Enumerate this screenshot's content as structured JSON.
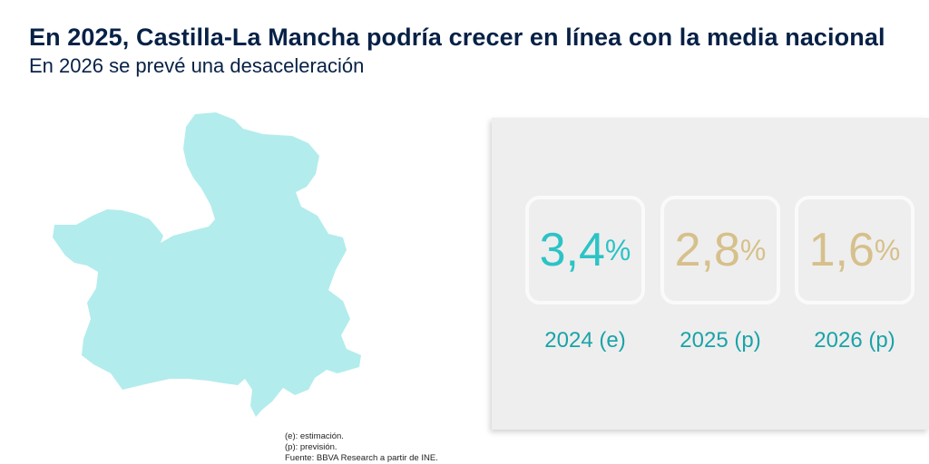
{
  "title": "En 2025, Castilla-La Mancha podría crecer en línea con la media nacional",
  "subtitle": "En 2026 se prevé una desaceleración",
  "colors": {
    "map_fill": "#b3ecec",
    "teal": "#2cc3c6",
    "gold": "#d6c08b",
    "label": "#1aa3a8",
    "title": "#072146"
  },
  "stats": [
    {
      "value": "3,4",
      "unit": "%",
      "label": "2024 (e)"
    },
    {
      "value": "2,8",
      "unit": "%",
      "label": "2025 (p)"
    },
    {
      "value": "1,6",
      "unit": "%",
      "label": "2026 (p)"
    }
  ],
  "notes": {
    "line1": "(e): estimación.",
    "line2": "(p): previsión.",
    "line3": "Fuente: BBVA Research a partir de INE."
  }
}
